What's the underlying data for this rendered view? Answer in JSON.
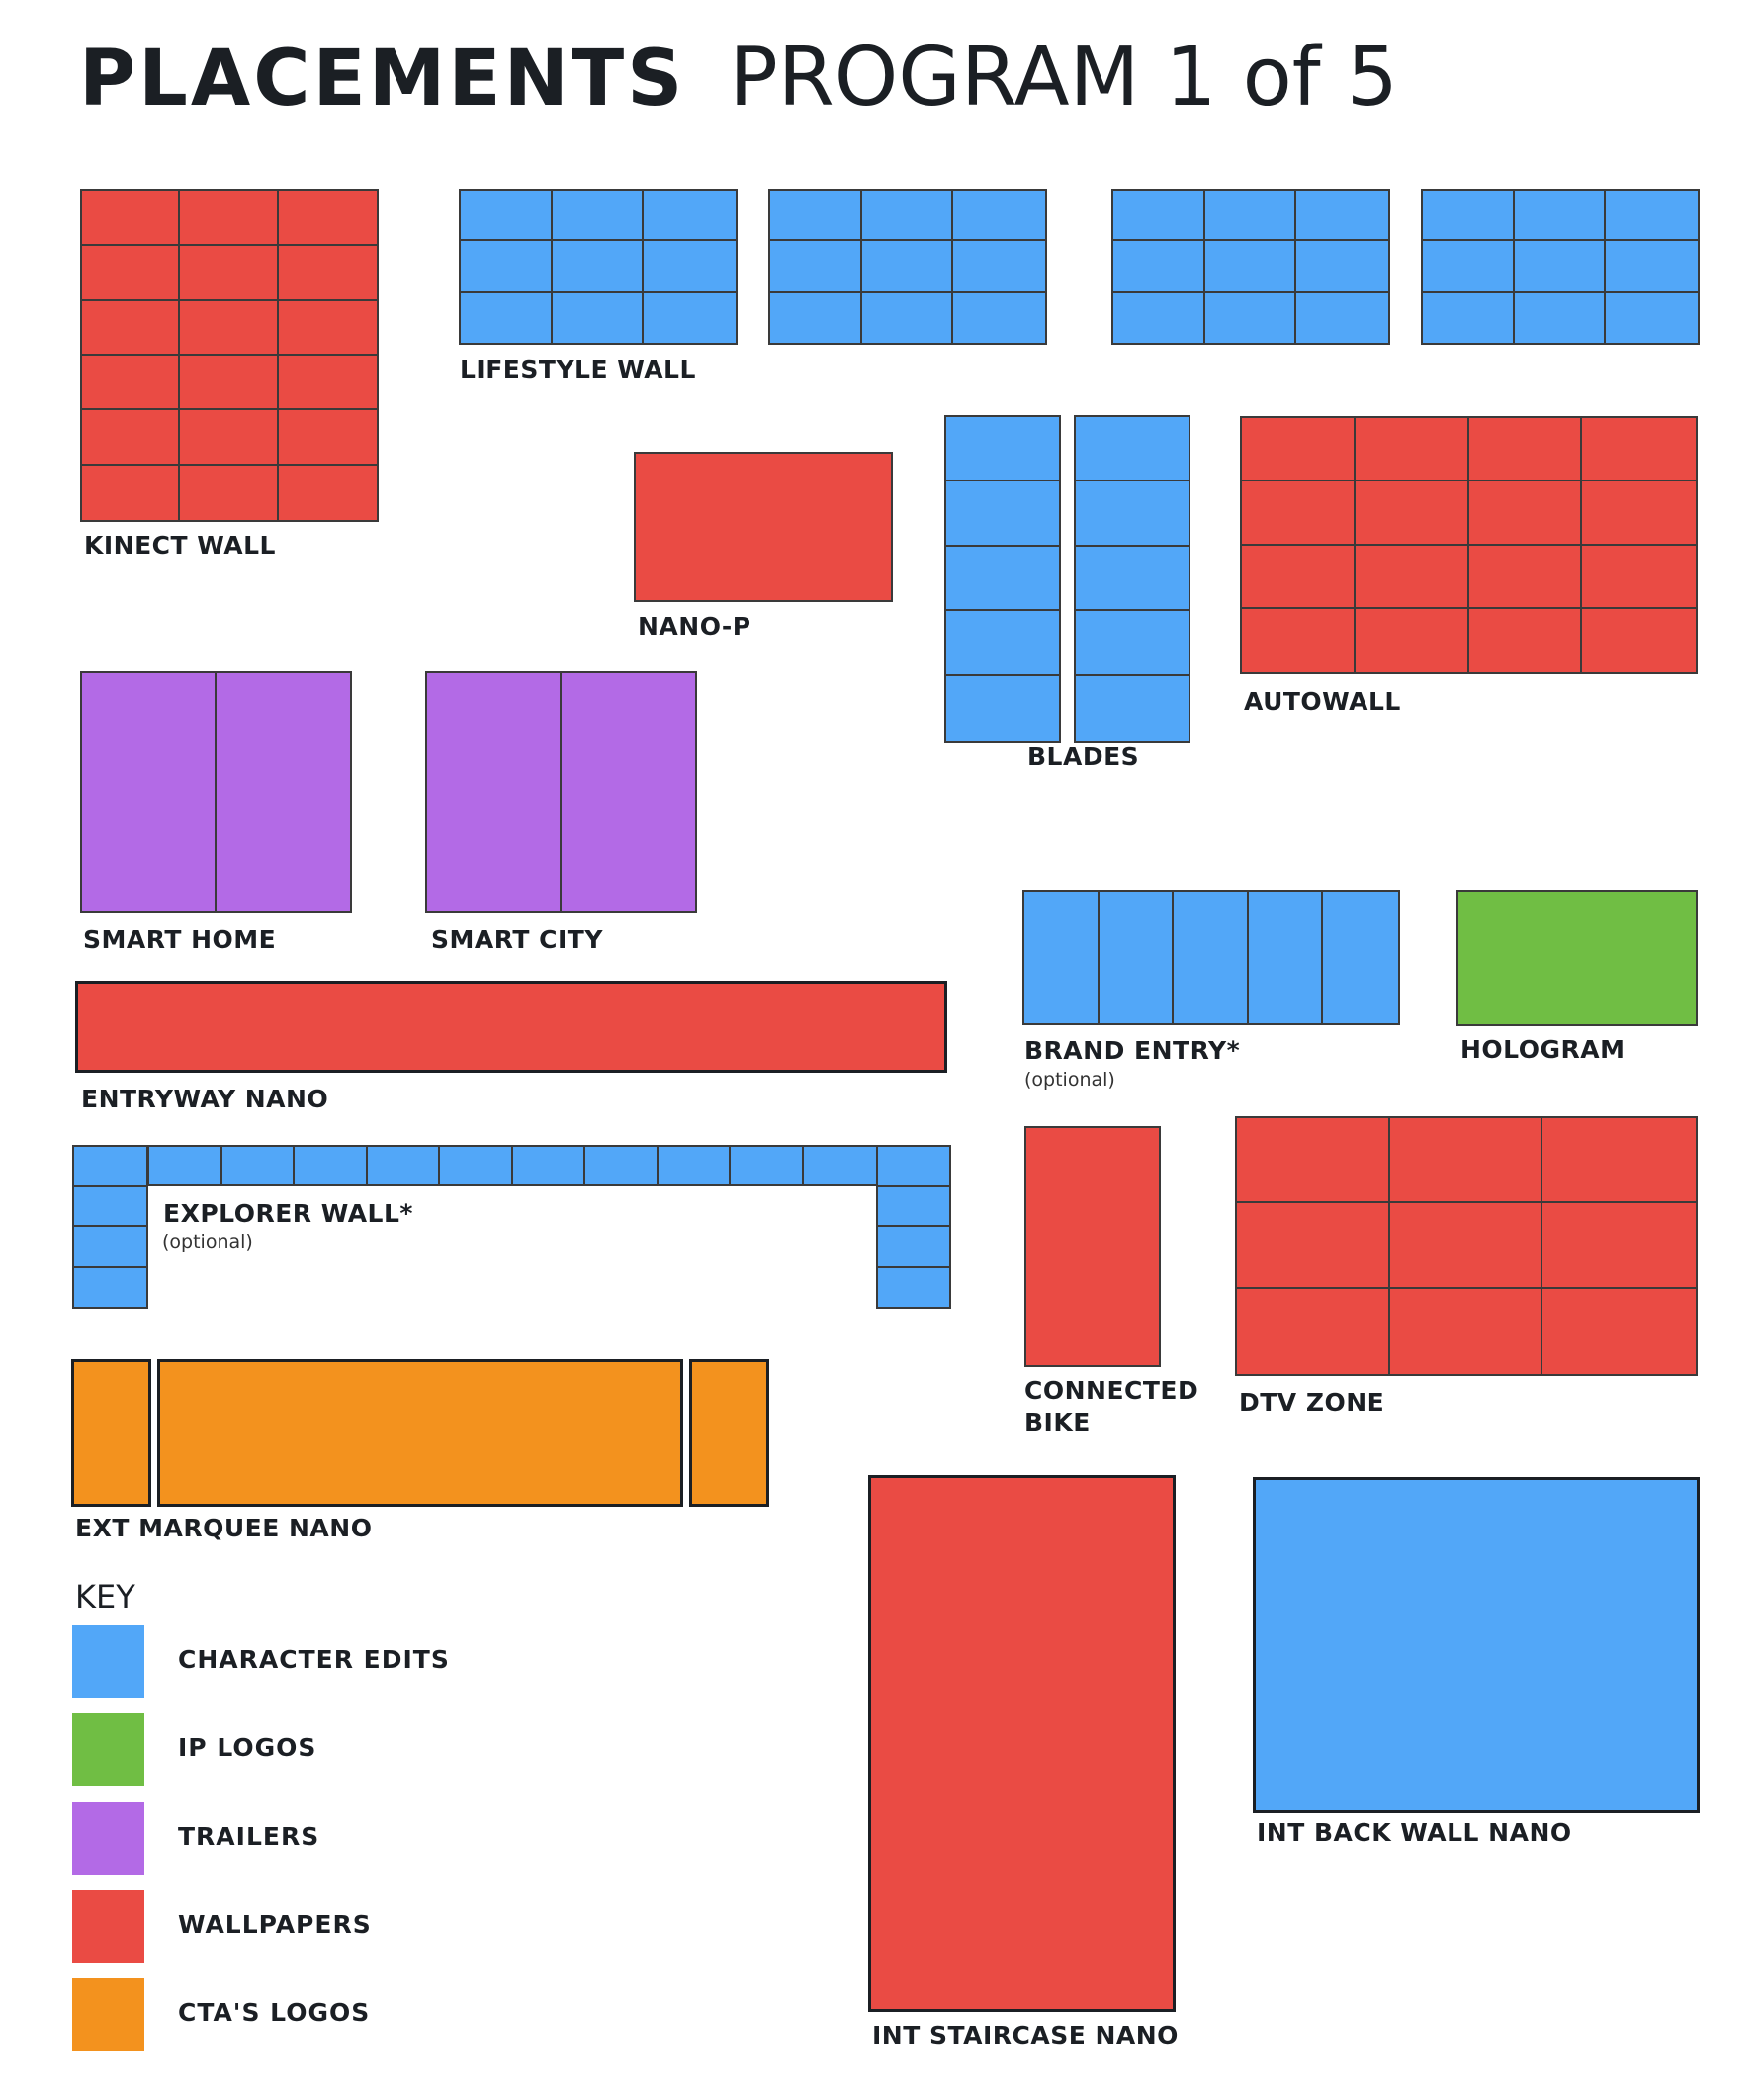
{
  "title": {
    "bold": "PLACEMENTS",
    "light": "PROGRAM 1 of 5"
  },
  "colors": {
    "character_edits": "#52a7f8",
    "ip_logos": "#70be44",
    "trailers": "#b36ae6",
    "wallpapers": "#ea4b44",
    "ctas_logos": "#f3921e"
  },
  "placements": {
    "kinect_wall": {
      "label": "KINECT WALL",
      "color": "wallpapers",
      "cols": 3,
      "rows": 6
    },
    "lifestyle_wall": {
      "label": "LIFESTYLE WALL",
      "color": "character_edits",
      "cols": 3,
      "rows": 3,
      "panels": 4
    },
    "nano_p": {
      "label": "NANO-P",
      "color": "wallpapers"
    },
    "blades": {
      "label": "BLADES",
      "color": "character_edits",
      "columns": 2,
      "rows": 5
    },
    "autowall": {
      "label": "AUTOWALL",
      "color": "wallpapers",
      "cols": 4,
      "rows": 4
    },
    "smart_home": {
      "label": "SMART HOME",
      "color": "trailers",
      "cols": 2
    },
    "smart_city": {
      "label": "SMART CITY",
      "color": "trailers",
      "cols": 2
    },
    "brand_entry": {
      "label": "BRAND ENTRY*",
      "note": "(optional)",
      "color": "character_edits",
      "cols": 5
    },
    "hologram": {
      "label": "HOLOGRAM",
      "color": "ip_logos"
    },
    "entryway_nano": {
      "label": "ENTRYWAY NANO",
      "color": "wallpapers"
    },
    "explorer_wall": {
      "label": "EXPLORER WALL*",
      "note": "(optional)",
      "color": "character_edits",
      "top_cells": 10,
      "side_cells": 4
    },
    "connected_bike": {
      "label_line1": "CONNECTED",
      "label_line2": "BIKE",
      "color": "wallpapers"
    },
    "dtv_zone": {
      "label": "DTV ZONE",
      "color": "wallpapers",
      "cols": 3,
      "rows": 3
    },
    "ext_marquee_nano": {
      "label": "EXT MARQUEE NANO",
      "color": "ctas_logos",
      "segments": 3
    },
    "int_staircase_nano": {
      "label": "INT STAIRCASE NANO",
      "color": "wallpapers"
    },
    "int_back_wall_nano": {
      "label": "INT BACK WALL NANO",
      "color": "character_edits"
    }
  },
  "key": {
    "title": "KEY",
    "items": [
      {
        "label": "CHARACTER EDITS",
        "color": "character_edits"
      },
      {
        "label": "IP LOGOS",
        "color": "ip_logos"
      },
      {
        "label": "TRAILERS",
        "color": "trailers"
      },
      {
        "label": "WALLPAPERS",
        "color": "wallpapers"
      },
      {
        "label": "CTA'S LOGOS",
        "color": "ctas_logos"
      }
    ]
  }
}
